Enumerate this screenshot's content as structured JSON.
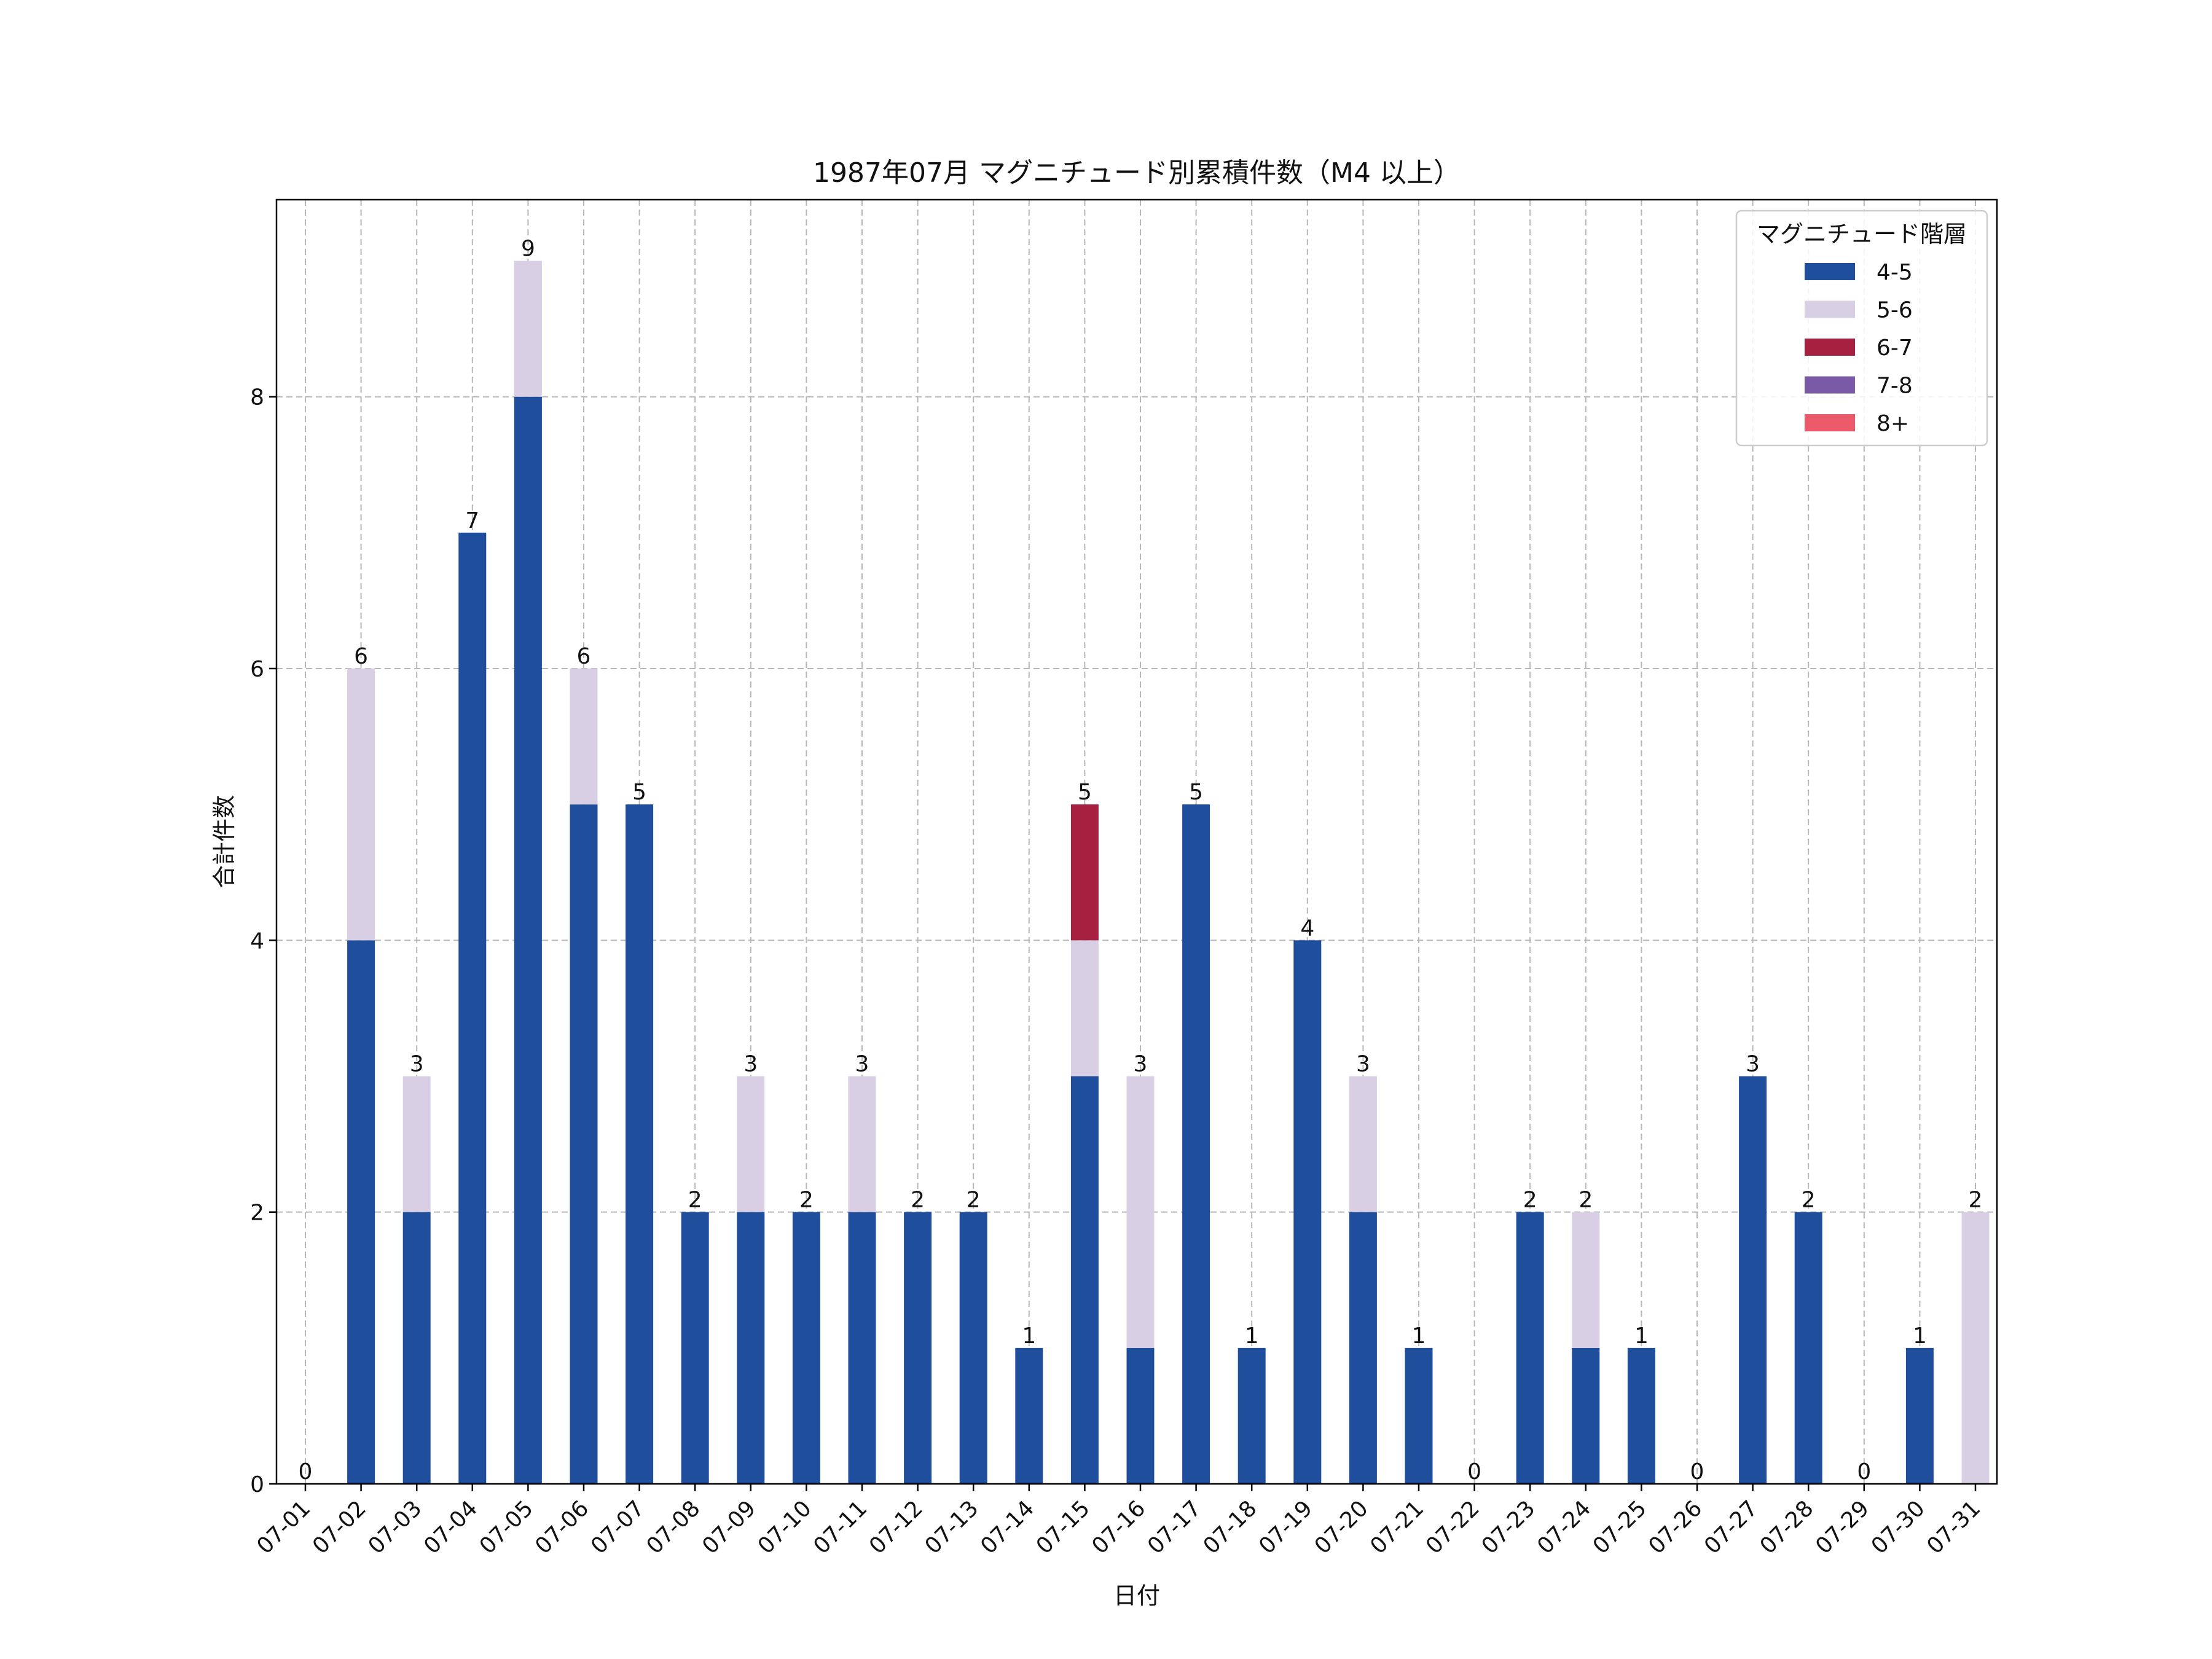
{
  "chart_data": {
    "type": "bar",
    "stacked": true,
    "title": "1987年07月 マグニチュード別累積件数（M4 以上）",
    "xlabel": "日付",
    "ylabel": "合計件数",
    "ylim": [
      0,
      9.45
    ],
    "yticks": [
      0,
      2,
      4,
      6,
      8
    ],
    "grid": true,
    "legend_title": "マグニチュード階層",
    "legend_position": "top-right",
    "categories": [
      "07-01",
      "07-02",
      "07-03",
      "07-04",
      "07-05",
      "07-06",
      "07-07",
      "07-08",
      "07-09",
      "07-10",
      "07-11",
      "07-12",
      "07-13",
      "07-14",
      "07-15",
      "07-16",
      "07-17",
      "07-18",
      "07-19",
      "07-20",
      "07-21",
      "07-22",
      "07-23",
      "07-24",
      "07-25",
      "07-26",
      "07-27",
      "07-28",
      "07-29",
      "07-30",
      "07-31"
    ],
    "series": [
      {
        "name": "4-5",
        "color": "#1f4e9c",
        "values": [
          0,
          4,
          2,
          7,
          8,
          5,
          5,
          2,
          2,
          2,
          2,
          2,
          2,
          1,
          3,
          1,
          5,
          1,
          4,
          2,
          1,
          0,
          2,
          1,
          1,
          0,
          3,
          2,
          0,
          1,
          0
        ]
      },
      {
        "name": "5-6",
        "color": "#d9cfe4",
        "values": [
          0,
          2,
          1,
          0,
          1,
          1,
          0,
          0,
          1,
          0,
          1,
          0,
          0,
          0,
          1,
          2,
          0,
          0,
          0,
          1,
          0,
          0,
          0,
          1,
          0,
          0,
          0,
          0,
          0,
          0,
          2
        ]
      },
      {
        "name": "6-7",
        "color": "#a8203f",
        "values": [
          0,
          0,
          0,
          0,
          0,
          0,
          0,
          0,
          0,
          0,
          0,
          0,
          0,
          0,
          1,
          0,
          0,
          0,
          0,
          0,
          0,
          0,
          0,
          0,
          0,
          0,
          0,
          0,
          0,
          0,
          0
        ]
      },
      {
        "name": "7-8",
        "color": "#7a5aa6",
        "values": [
          0,
          0,
          0,
          0,
          0,
          0,
          0,
          0,
          0,
          0,
          0,
          0,
          0,
          0,
          0,
          0,
          0,
          0,
          0,
          0,
          0,
          0,
          0,
          0,
          0,
          0,
          0,
          0,
          0,
          0,
          0
        ]
      },
      {
        "name": "8+",
        "color": "#ea5a6a",
        "values": [
          0,
          0,
          0,
          0,
          0,
          0,
          0,
          0,
          0,
          0,
          0,
          0,
          0,
          0,
          0,
          0,
          0,
          0,
          0,
          0,
          0,
          0,
          0,
          0,
          0,
          0,
          0,
          0,
          0,
          0,
          0
        ]
      }
    ],
    "totals": [
      0,
      6,
      3,
      7,
      9,
      6,
      5,
      2,
      3,
      2,
      3,
      2,
      2,
      1,
      5,
      3,
      5,
      1,
      4,
      3,
      1,
      0,
      2,
      2,
      1,
      0,
      3,
      2,
      0,
      1,
      2
    ]
  }
}
